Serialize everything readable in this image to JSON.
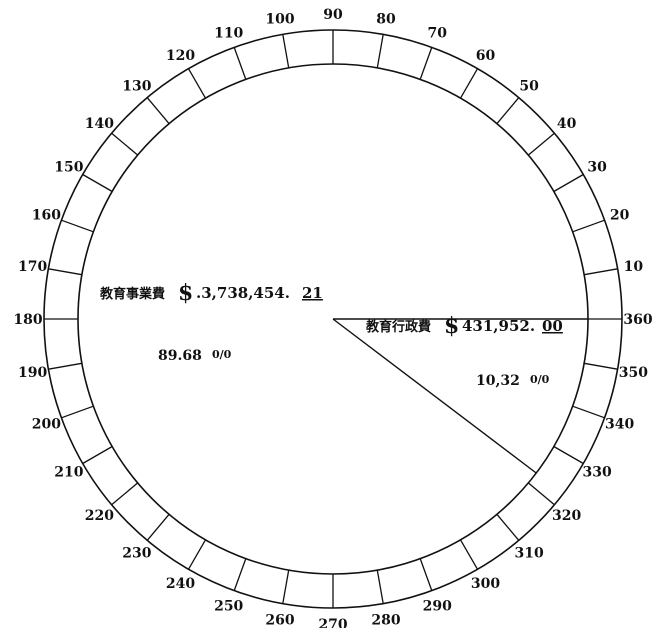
{
  "chart_data": {
    "type": "pie",
    "title": "",
    "colors": {
      "ink": "#111111",
      "background": "#ffffff"
    },
    "ring": {
      "angle_start": 0,
      "angle_end": 360,
      "tick_step": 10,
      "tick_labels": [
        "10",
        "20",
        "30",
        "40",
        "50",
        "60",
        "70",
        "80",
        "90",
        "100",
        "110",
        "120",
        "130",
        "140",
        "150",
        "160",
        "170",
        "180",
        "190",
        "200",
        "210",
        "220",
        "230",
        "240",
        "250",
        "260",
        "270",
        "280",
        "290",
        "300",
        "310",
        "320",
        "330",
        "340",
        "350",
        "360"
      ]
    },
    "slices": [
      {
        "label": "教育事業費",
        "currency": "$",
        "amount": ".3,738,454.",
        "cents": "21",
        "percent_whole": "89.68",
        "percent_frac": "0/0",
        "value": 89.68
      },
      {
        "label": "教育行政費",
        "currency": "$",
        "amount": "431,952.",
        "cents": "00",
        "percent_whole": "10,32",
        "percent_frac": "0/0",
        "value": 10.32
      }
    ]
  }
}
